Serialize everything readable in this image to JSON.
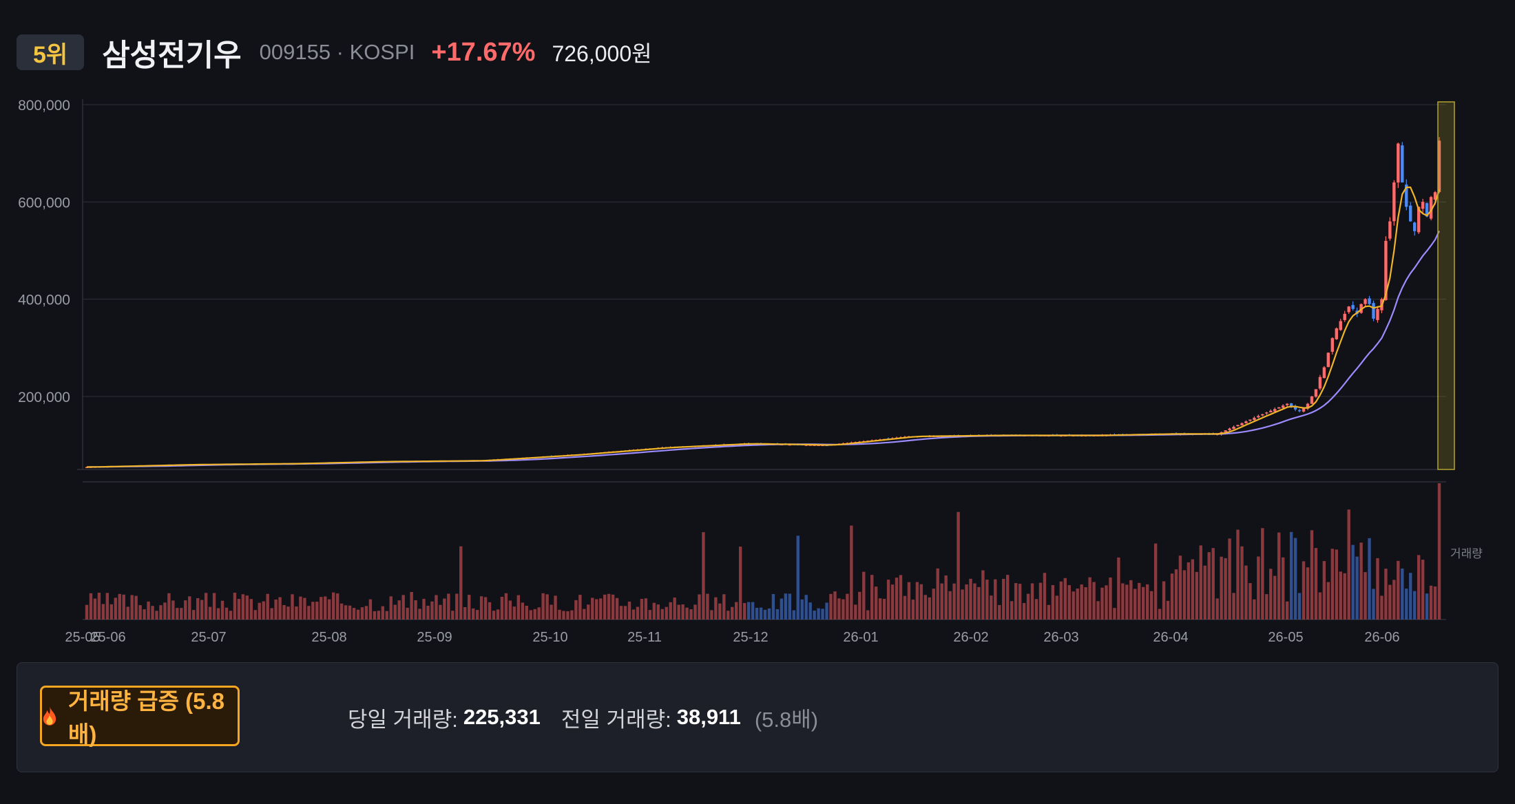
{
  "header": {
    "rank": "5위",
    "name": "삼성전기우",
    "code_market": "009155 · KOSPI",
    "change_pct": "+17.67%",
    "price": "726,000원"
  },
  "colors": {
    "up": "#ff6b6b",
    "down": "#4b8bf5",
    "ma_short": "#f0b429",
    "ma_long": "#9b8cff",
    "highlight": "#b5a531"
  },
  "chart_data": {
    "type": "candlestick",
    "y_ticks": [
      "800,000",
      "600,000",
      "400,000",
      "200,000"
    ],
    "y_tick_values": [
      800000,
      600000,
      400000,
      200000
    ],
    "ylim": [
      50000,
      800000
    ],
    "x_ticks": [
      "25-05",
      "25-06",
      "25-07",
      "25-08",
      "25-09",
      "25-10",
      "25-11",
      "25-12",
      "26-01",
      "26-02",
      "26-03",
      "26-04",
      "26-05",
      "26-06"
    ],
    "close_trend": [
      [
        "25-05",
        55000
      ],
      [
        "25-06",
        60000
      ],
      [
        "25-07",
        62000
      ],
      [
        "25-08",
        66000
      ],
      [
        "25-09",
        80000
      ],
      [
        "25-10",
        95000
      ],
      [
        "25-11",
        103000
      ],
      [
        "25-12",
        118000
      ],
      [
        "26-01",
        120000
      ],
      [
        "26-02",
        123000
      ],
      [
        "26-03",
        150000
      ],
      [
        "26-03b",
        185000
      ],
      [
        "26-03c",
        160000
      ],
      [
        "26-04",
        168000
      ],
      [
        "26-04b",
        200000
      ],
      [
        "26-05",
        350000
      ],
      [
        "26-05b",
        380000
      ],
      [
        "26-05c",
        400000
      ],
      [
        "26-06",
        640000
      ],
      [
        "26-06b",
        560000
      ],
      [
        "26-06c",
        610000
      ],
      [
        "26-06d",
        726000
      ]
    ],
    "volume_label": "거래량",
    "grid": true
  },
  "volume_alert": {
    "badge": "거래량 급증 (5.8배)",
    "today_label": "당일 거래량:",
    "today_value": "225,331",
    "prev_label": "전일 거래량:",
    "prev_value": "38,911",
    "ratio": "(5.8배)"
  }
}
